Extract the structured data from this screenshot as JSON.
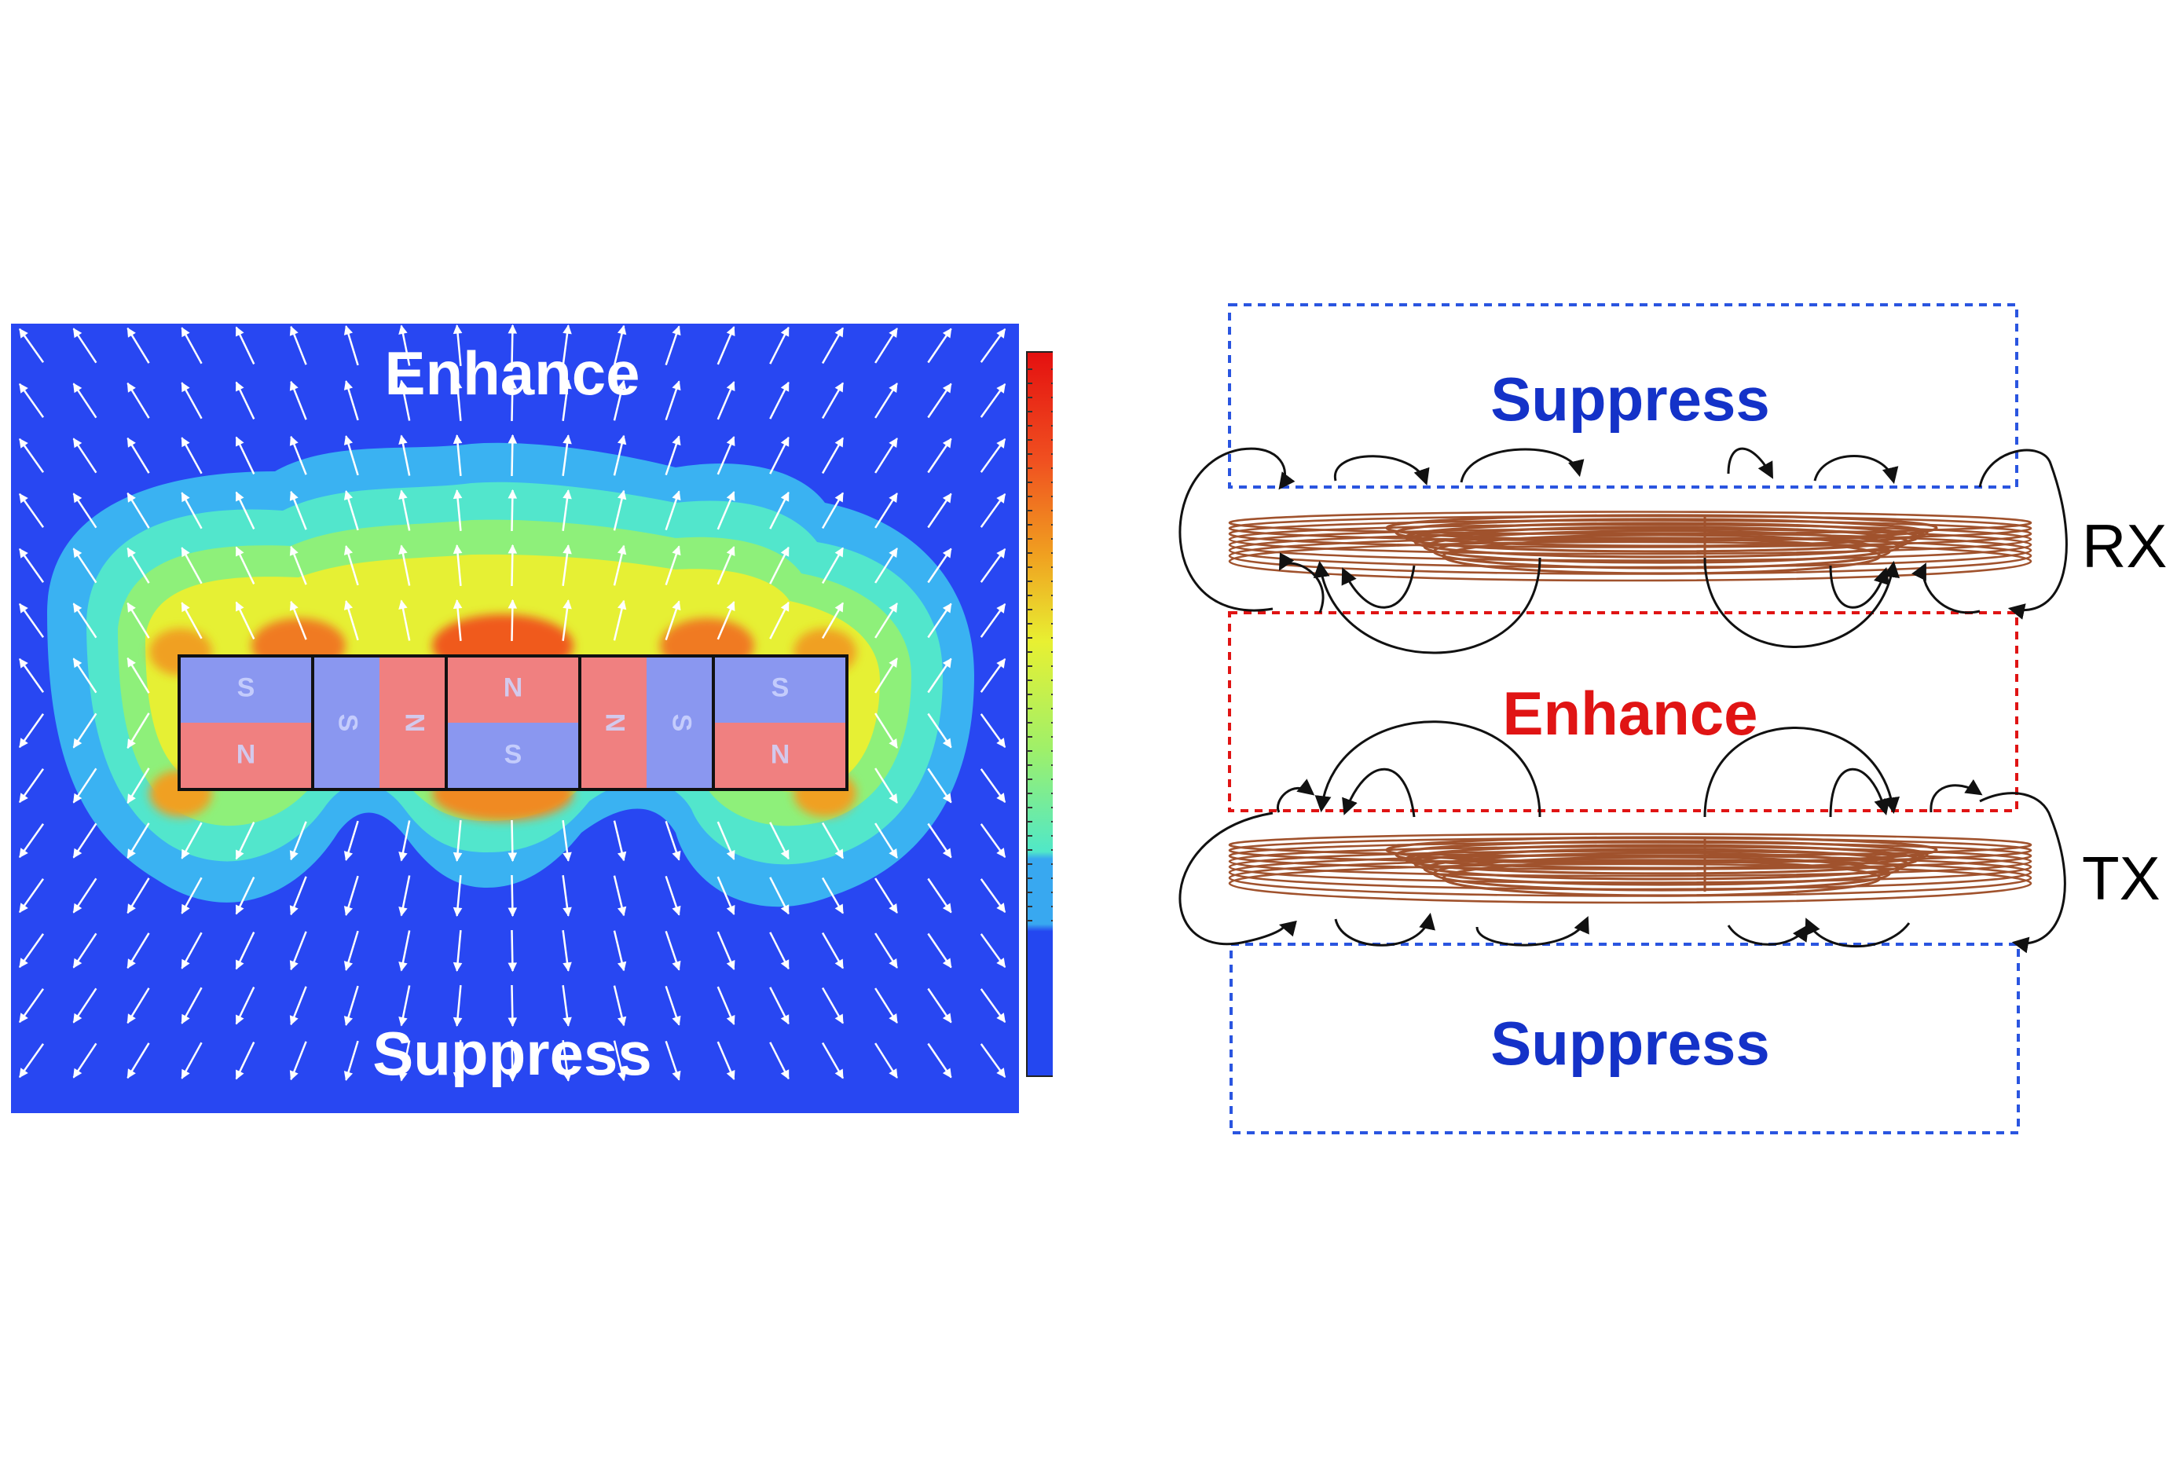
{
  "colors": {
    "field_bg": "#2847f2",
    "magnet_north": "#f08080",
    "magnet_south": "#8a97f0",
    "suppress_text": "#1432c8",
    "enhance_text": "#e01414",
    "coil_wire": "#a0522d",
    "box_blue": "#2a55e0",
    "box_red": "#e01414"
  },
  "left": {
    "top_label": "Enhance",
    "bottom_label": "Suppress",
    "magnets": [
      {
        "top": "S",
        "bottom": "N",
        "orientation": "vertical"
      },
      {
        "left": "S",
        "right": "N",
        "orientation": "horizontal"
      },
      {
        "top": "N",
        "bottom": "S",
        "orientation": "vertical"
      },
      {
        "left": "N",
        "right": "S",
        "orientation": "horizontal"
      },
      {
        "top": "S",
        "bottom": "N",
        "orientation": "vertical"
      }
    ]
  },
  "right": {
    "top_label": "Suppress",
    "middle_label": "Enhance",
    "bottom_label": "Suppress",
    "rx_label": "RX",
    "tx_label": "TX"
  }
}
